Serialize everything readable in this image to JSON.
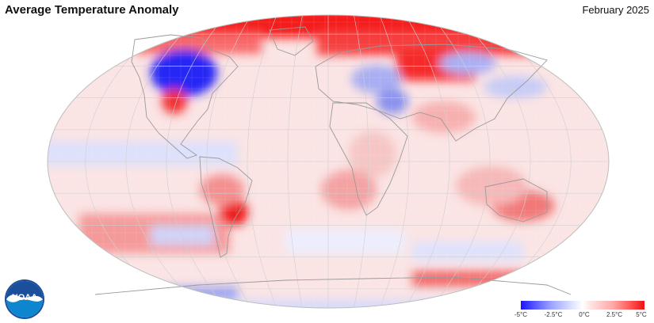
{
  "header": {
    "title": "Average Temperature Anomaly",
    "date": "February 2025"
  },
  "logo": {
    "text": "NOAA"
  },
  "legend": {
    "unit": "°C",
    "ticks": [
      "-5°C",
      "-2.5°C",
      "0°C",
      "2.5°C",
      "5°C"
    ]
  },
  "colors": {
    "cold_extreme": "#1a13ff",
    "neutral": "#ffffff",
    "warm_extreme": "#ee1212",
    "land_outline": "#9a9a9a",
    "graticule": "#cfcfcf"
  },
  "anomaly_regions": [
    {
      "region": "Arctic / high northern latitudes",
      "anomaly_c": 5
    },
    {
      "region": "Northern Canada / Hudson Bay",
      "anomaly_c": -5
    },
    {
      "region": "Eastern Europe / Western Russia",
      "anomaly_c": -2
    },
    {
      "region": "Northern Siberia",
      "anomaly_c": 4.5
    },
    {
      "region": "Eastern Siberia",
      "anomaly_c": -2
    },
    {
      "region": "Southern South America",
      "anomaly_c": 4.5
    },
    {
      "region": "Eastern Australia",
      "anomaly_c": 3
    },
    {
      "region": "Equatorial Pacific",
      "anomaly_c": -1
    },
    {
      "region": "Southern Ocean",
      "anomaly_c": -1.5
    },
    {
      "region": "Antarctic coast (Pacific sector)",
      "anomaly_c": 4
    }
  ]
}
